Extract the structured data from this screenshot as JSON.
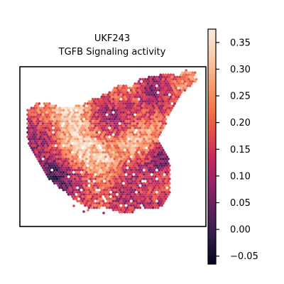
{
  "chart_data": {
    "type": "scatter",
    "title": [
      "UKF243",
      "TGFB Signaling activity"
    ],
    "xlabel": "",
    "ylabel": "",
    "axes_ticks_shown": false,
    "colormap": "rocket",
    "colorbar": {
      "vmin": -0.065,
      "vmax": 0.375,
      "ticks": [
        -0.05,
        0.0,
        0.05,
        0.1,
        0.15,
        0.2,
        0.25,
        0.3,
        0.35
      ],
      "tick_labels": [
        "−0.05",
        "0.00",
        "0.05",
        "0.10",
        "0.15",
        "0.20",
        "0.25",
        "0.30",
        "0.35"
      ]
    },
    "spot_shape": "hexagon",
    "value_pattern": {
      "description_values": "spot activity ranges approx -0.06 to 0.37; mean around 0.17",
      "high_regions": [
        {
          "x": 0.3,
          "y": 0.72,
          "value": 0.3
        },
        {
          "x": 0.62,
          "y": 0.5,
          "value": 0.33
        },
        {
          "x": 0.45,
          "y": 0.4,
          "value": 0.3
        },
        {
          "x": 0.88,
          "y": 0.85,
          "value": 0.3
        },
        {
          "x": 0.3,
          "y": 0.58,
          "value": 0.27
        }
      ],
      "low_regions": [
        {
          "x": 0.18,
          "y": 0.35,
          "value": 0.02
        },
        {
          "x": 0.55,
          "y": 0.18,
          "value": 0.04
        },
        {
          "x": 0.7,
          "y": 0.88,
          "value": 0.03
        },
        {
          "x": 0.78,
          "y": 0.45,
          "value": 0.05
        }
      ]
    }
  },
  "colormap_stops": [
    "#03051a",
    "#2b1b46",
    "#5c1f5b",
    "#8d2369",
    "#c1285e",
    "#e44c49",
    "#f3794d",
    "#f6a47a",
    "#f9cdb0",
    "#faebdd"
  ]
}
